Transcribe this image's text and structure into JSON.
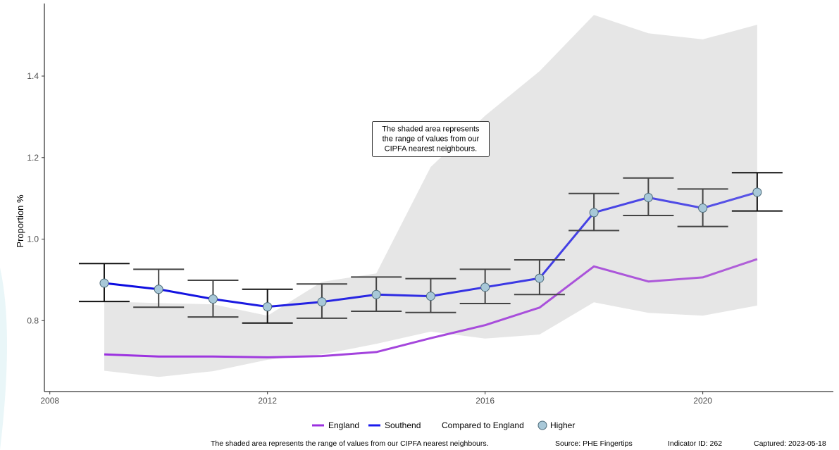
{
  "chart_data": {
    "type": "line",
    "xlabel": "",
    "ylabel": "Proportion %",
    "xlim": [
      2007.9,
      2022.4
    ],
    "ylim": [
      0.626,
      1.578
    ],
    "x_ticks": [
      2008,
      2012,
      2016,
      2020
    ],
    "y_ticks": [
      0.8,
      1.0,
      1.2,
      1.4
    ],
    "grid": false,
    "legend_position": "bottom",
    "x": [
      2009,
      2010,
      2011,
      2012,
      2013,
      2014,
      2015,
      2016,
      2017,
      2018,
      2019,
      2020,
      2021
    ],
    "series": [
      {
        "name": "England",
        "color": "#9b30e0",
        "values": [
          0.717,
          0.712,
          0.712,
          0.71,
          0.713,
          0.723,
          0.757,
          0.789,
          0.832,
          0.933,
          0.896,
          0.906,
          0.951
        ]
      },
      {
        "name": "Southend",
        "color": "#1a1aee",
        "values": [
          0.892,
          0.877,
          0.853,
          0.834,
          0.846,
          0.864,
          0.86,
          0.882,
          0.904,
          1.065,
          1.102,
          1.076,
          1.115
        ],
        "ci_lower": [
          0.847,
          0.833,
          0.809,
          0.794,
          0.806,
          0.823,
          0.82,
          0.842,
          0.864,
          1.021,
          1.058,
          1.031,
          1.069
        ],
        "ci_upper": [
          0.94,
          0.926,
          0.899,
          0.877,
          0.89,
          0.907,
          0.903,
          0.926,
          0.949,
          1.112,
          1.15,
          1.123,
          1.163
        ],
        "comparison": [
          "Higher",
          "Higher",
          "Higher",
          "Higher",
          "Higher",
          "Higher",
          "Higher",
          "Higher",
          "Higher",
          "Higher",
          "Higher",
          "Higher",
          "Higher"
        ]
      }
    ],
    "range_band": {
      "color": "#e6e6e6",
      "lower": [
        0.677,
        0.662,
        0.676,
        0.704,
        0.717,
        0.743,
        0.773,
        0.756,
        0.766,
        0.845,
        0.819,
        0.812,
        0.837
      ],
      "upper": [
        0.847,
        0.843,
        0.84,
        0.812,
        0.895,
        0.916,
        1.177,
        1.303,
        1.412,
        1.55,
        1.505,
        1.49,
        1.526
      ]
    },
    "annotation": {
      "x": 2015,
      "y": 1.28,
      "lines": [
        "The shaded area represents",
        "the range of values from our",
        "CIPFA nearest neighbours."
      ]
    },
    "legend": {
      "items": [
        "England",
        "Southend"
      ],
      "comparison_title": "Compared to England",
      "comparison_item": "Higher",
      "marker_color": "#a8c8d8"
    },
    "caption": {
      "note": "The shaded area represents the range of values from our CIPFA nearest neighbours.",
      "source": "Source: PHE Fingertips",
      "indicator": "Indicator ID: 262",
      "captured": "Captured: 2023-05-18"
    }
  }
}
